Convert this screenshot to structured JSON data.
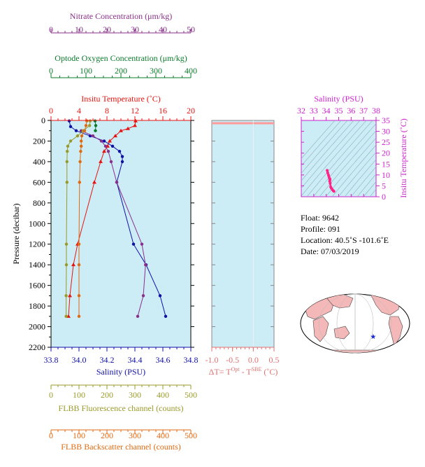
{
  "colors": {
    "nitrate": "#8b2f8b",
    "oxygen": "#0a7a2a",
    "temperature": "#e8130f",
    "salinity": "#1010a8",
    "fluorescence": "#9a9a2a",
    "backscatter": "#e06a10",
    "plot_bg": "#ccecf6",
    "dt_axis": "#e07070",
    "ts_axis": "#cc22cc",
    "ts_points": "#ff2288",
    "map_land": "#f4b8b8",
    "map_water": "#ffffff"
  },
  "chart_data": [
    {
      "type": "line",
      "name": "main-profile",
      "ylabel": "Pressure (decibar)",
      "ylim": [
        2200,
        0
      ],
      "yticks": [
        "0",
        "200",
        "400",
        "600",
        "800",
        "1000",
        "1200",
        "1400",
        "1600",
        "1800",
        "2000",
        "2200"
      ],
      "axes": {
        "nitrate": {
          "label": "Nitrate Concentration (μm/kg)",
          "range": [
            0,
            50
          ],
          "ticks": [
            "0",
            "10",
            "20",
            "30",
            "40",
            "50"
          ]
        },
        "oxygen": {
          "label": "Optode Oxygen Concentration (μm/kg)",
          "range": [
            0,
            400
          ],
          "ticks": [
            "0",
            "100",
            "200",
            "300",
            "400"
          ]
        },
        "temperature": {
          "label": "Insitu Temperature (˚C)",
          "range": [
            0,
            20
          ],
          "ticks": [
            "0",
            "4",
            "8",
            "12",
            "16",
            "20"
          ]
        },
        "salinity": {
          "label": "Salinity (PSU)",
          "range": [
            33.8,
            34.8
          ],
          "ticks": [
            "33.8",
            "34.0",
            "34.2",
            "34.4",
            "34.6",
            "34.8"
          ]
        },
        "fluorescence": {
          "label": "FLBB Fluorescence channel (counts)",
          "range": [
            0,
            500
          ],
          "ticks": [
            "0",
            "100",
            "200",
            "300",
            "400",
            "500"
          ]
        },
        "backscatter": {
          "label": "FLBB Backscatter channel (counts)",
          "range": [
            0,
            500
          ],
          "ticks": [
            "0",
            "100",
            "200",
            "300",
            "400",
            "500"
          ]
        }
      },
      "series": [
        {
          "key": "temperature",
          "pressure": [
            5,
            50,
            80,
            100,
            150,
            200,
            250,
            300,
            400,
            600,
            1200,
            1400,
            1700,
            1900
          ],
          "values": [
            12.1,
            12.0,
            11.0,
            10.0,
            9.2,
            8.4,
            8.1,
            7.6,
            7.1,
            6.2,
            3.8,
            3.2,
            2.7,
            2.5
          ]
        },
        {
          "key": "salinity",
          "pressure": [
            5,
            60,
            100,
            150,
            200,
            250,
            300,
            350,
            400,
            600,
            1200,
            1400,
            1700,
            1900
          ],
          "values": [
            33.93,
            33.94,
            33.98,
            34.08,
            34.18,
            34.24,
            34.29,
            34.31,
            34.31,
            34.27,
            34.39,
            34.48,
            34.58,
            34.62
          ]
        },
        {
          "key": "nitrate",
          "pressure": [
            100,
            150,
            200,
            250,
            300,
            400,
            600,
            1200,
            1400,
            1700,
            1900
          ],
          "values": [
            10.8,
            15.0,
            18.0,
            19.5,
            20.5,
            21.5,
            23.5,
            32.5,
            33.8,
            33.0,
            31.0
          ]
        },
        {
          "key": "oxygen",
          "pressure": [
            5,
            50,
            100
          ],
          "values": [
            126,
            128,
            127
          ]
        },
        {
          "key": "fluorescence",
          "pressure": [
            5,
            50,
            100,
            150,
            200,
            250,
            300,
            400,
            600,
            1200,
            1400,
            1700,
            1900
          ],
          "values": [
            140,
            138,
            115,
            95,
            70,
            60,
            58,
            57,
            57,
            55,
            55,
            54,
            54
          ]
        },
        {
          "key": "backscatter",
          "pressure": [
            5,
            50,
            100,
            150,
            200,
            250,
            300,
            400,
            600,
            1200,
            1400,
            1700,
            1900
          ],
          "values": [
            128,
            125,
            120,
            110,
            108,
            108,
            106,
            104,
            102,
            100,
            100,
            100,
            100
          ]
        }
      ]
    },
    {
      "type": "line",
      "name": "delta-t",
      "xlabel": "ΔT= T",
      "xlabel_sup1": "Opt",
      "xlabel_mid": " - T",
      "xlabel_sup2": "SBE",
      "xlabel_end": " (˚C)",
      "xlim": [
        -1.0,
        0.5
      ],
      "ylim": [
        2200,
        0
      ],
      "xticks": [
        "-1.0",
        "-0.5",
        "0.0",
        "0.5"
      ],
      "pressure": [
        5,
        40
      ],
      "values": [
        -1.0,
        0.5
      ]
    },
    {
      "type": "scatter",
      "name": "ts-diagram",
      "xlabel": "Salinity (PSU)",
      "ylabel": "Insitu Temperature (˚C)",
      "xlim": [
        32,
        38
      ],
      "ylim": [
        0,
        35
      ],
      "xticks": [
        "32",
        "33",
        "34",
        "35",
        "36",
        "37",
        "38"
      ],
      "yticks": [
        "0",
        "5",
        "10",
        "15",
        "20",
        "25",
        "30",
        "35"
      ],
      "x": [
        34.08,
        34.12,
        34.18,
        34.22,
        34.26,
        34.3,
        34.3,
        34.28,
        34.32,
        34.36,
        34.42,
        34.5,
        34.58,
        34.62
      ],
      "y": [
        12.1,
        11.0,
        10.0,
        9.2,
        8.4,
        8.1,
        7.6,
        7.1,
        6.2,
        4.5,
        3.8,
        3.2,
        2.7,
        2.5
      ]
    }
  ],
  "info": {
    "float_label": "Float:",
    "float_value": "9642",
    "profile_label": "Profile:",
    "profile_value": "091",
    "location_label": "Location:",
    "location_value": "40.5˚S  -101.6˚E",
    "date_label": "Date:",
    "date_value": "07/03/2019"
  },
  "map": {
    "float_lon": -101.6,
    "float_lat": -40.5,
    "marker_color": "#1a2ad0"
  }
}
